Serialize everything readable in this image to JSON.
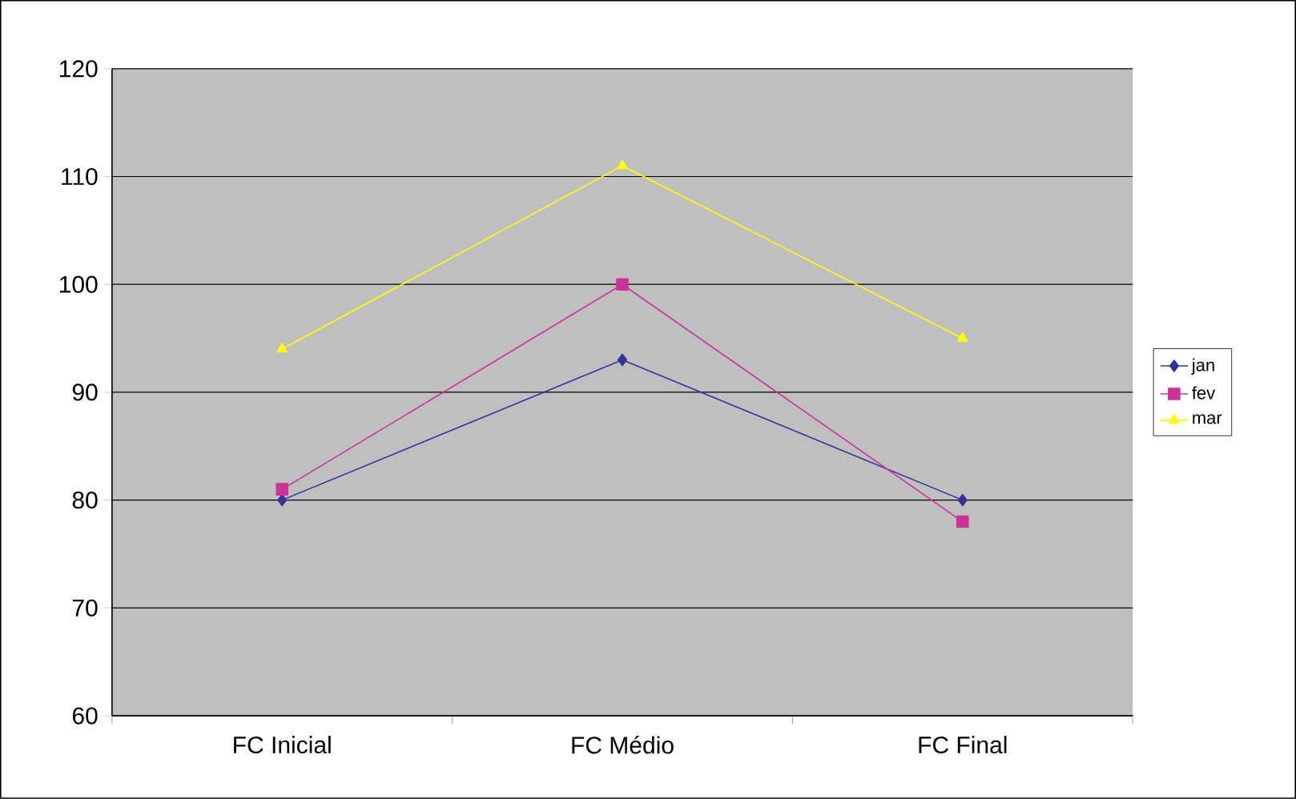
{
  "chart_data": {
    "type": "line",
    "categories": [
      "FC Inicial",
      "FC Médio",
      "FC Final"
    ],
    "series": [
      {
        "name": "jan",
        "color": "#333399",
        "marker": "diamond",
        "values": [
          80,
          93,
          80
        ]
      },
      {
        "name": "fev",
        "color": "#cc3399",
        "marker": "square",
        "values": [
          81,
          100,
          78
        ]
      },
      {
        "name": "mar",
        "color": "#ffff00",
        "marker": "triangle",
        "values": [
          94,
          111,
          95
        ]
      }
    ],
    "ylim": [
      60,
      120
    ],
    "yticks": [
      60,
      70,
      80,
      90,
      100,
      110,
      120
    ],
    "grid": "y",
    "legend": "right",
    "line_style": "solid"
  }
}
